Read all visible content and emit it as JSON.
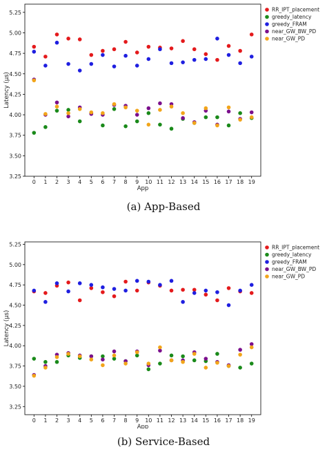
{
  "chart_data": [
    {
      "type": "scatter",
      "caption": "(a) App-Based",
      "xlabel": "App",
      "ylabel": "Latency (μs)",
      "xlim": [
        -0.8,
        19.8
      ],
      "ylim": [
        3.25,
        5.35
      ],
      "x_ticks": [
        0,
        1,
        2,
        3,
        4,
        5,
        6,
        7,
        8,
        9,
        10,
        11,
        12,
        13,
        14,
        15,
        16,
        17,
        18,
        19
      ],
      "y_ticks": [
        3.25,
        3.5,
        3.75,
        4.0,
        4.25,
        4.5,
        4.75,
        5.0,
        5.25
      ],
      "y_tick_labels": [
        "3.25",
        "3.50",
        "3.75",
        "4.00",
        "4.25",
        "4.50",
        "4.75",
        "5.00",
        "5.25"
      ],
      "legend_position": "top-right",
      "grid": false,
      "x": [
        0,
        1,
        2,
        3,
        4,
        5,
        6,
        7,
        8,
        9,
        10,
        11,
        12,
        13,
        14,
        15,
        16,
        17,
        18,
        19
      ],
      "series": [
        {
          "name": "RR_IPT_placement",
          "color": "#e41a1c",
          "values": [
            4.83,
            4.71,
            4.98,
            4.93,
            4.92,
            4.73,
            4.78,
            4.8,
            4.89,
            4.76,
            4.83,
            4.82,
            4.81,
            4.9,
            4.8,
            4.74,
            4.67,
            4.84,
            4.78,
            4.98
          ]
        },
        {
          "name": "greedy_latency",
          "color": "#1a8a1a",
          "values": [
            3.78,
            3.85,
            4.05,
            4.06,
            3.92,
            4.02,
            3.87,
            4.07,
            3.86,
            3.92,
            4.02,
            3.88,
            3.83,
            3.95,
            3.9,
            3.97,
            3.97,
            3.87,
            4.02,
            3.96
          ]
        },
        {
          "name": "greedy_FRAM",
          "color": "#1f1fe0",
          "values": [
            4.77,
            4.6,
            4.88,
            4.62,
            4.54,
            4.62,
            4.73,
            4.59,
            4.72,
            4.6,
            4.68,
            4.8,
            4.63,
            4.64,
            4.67,
            4.68,
            4.93,
            4.73,
            4.63,
            4.71
          ]
        },
        {
          "name": "near_GW_BW_PD",
          "color": "#7b0f8c",
          "values": [
            4.43,
            4.0,
            4.15,
            3.98,
            4.09,
            4.01,
            4.0,
            4.12,
            4.11,
            4.0,
            4.08,
            4.14,
            4.13,
            3.96,
            3.91,
            4.05,
            3.88,
            4.04,
            3.95,
            4.03
          ]
        },
        {
          "name": "near_GW_PD",
          "color": "#f2a51a",
          "values": [
            4.42,
            4.01,
            4.1,
            4.02,
            4.07,
            4.03,
            4.02,
            4.13,
            4.09,
            4.05,
            3.88,
            4.06,
            4.1,
            4.02,
            3.9,
            4.08,
            3.87,
            4.09,
            3.94,
            3.97
          ]
        }
      ]
    },
    {
      "type": "scatter",
      "caption": "(b) Service-Based",
      "xlabel": "App",
      "ylabel": "Latency (μs)",
      "xlim": [
        -0.8,
        19.8
      ],
      "ylim": [
        3.15,
        5.28
      ],
      "x_ticks": [
        0,
        1,
        2,
        3,
        4,
        5,
        6,
        7,
        8,
        9,
        10,
        11,
        12,
        13,
        14,
        15,
        16,
        17,
        18,
        19
      ],
      "y_ticks": [
        3.25,
        3.5,
        3.75,
        4.0,
        4.25,
        4.5,
        4.75,
        5.0,
        5.25
      ],
      "y_tick_labels": [
        "3.25",
        "3.50",
        "3.75",
        "4.00",
        "4.25",
        "4.50",
        "4.75",
        "5.00",
        "5.25"
      ],
      "legend_position": "top-right",
      "grid": false,
      "x": [
        0,
        1,
        2,
        3,
        4,
        5,
        6,
        7,
        8,
        9,
        10,
        11,
        12,
        13,
        14,
        15,
        16,
        17,
        18,
        19
      ],
      "series": [
        {
          "name": "RR_IPT_placement",
          "color": "#e41a1c",
          "values": [
            4.67,
            4.65,
            4.74,
            4.78,
            4.56,
            4.71,
            4.66,
            4.61,
            4.79,
            4.68,
            4.78,
            4.74,
            4.68,
            4.69,
            4.69,
            4.63,
            4.56,
            4.71,
            4.67,
            4.65
          ]
        },
        {
          "name": "greedy_latency",
          "color": "#1a8a1a",
          "values": [
            3.84,
            3.8,
            3.8,
            3.88,
            3.85,
            3.87,
            3.87,
            3.84,
            3.81,
            3.88,
            3.71,
            3.78,
            3.88,
            3.87,
            3.82,
            3.81,
            3.9,
            3.75,
            3.73,
            3.78
          ]
        },
        {
          "name": "greedy_FRAM",
          "color": "#1f1fe0",
          "values": [
            4.68,
            4.54,
            4.77,
            4.67,
            4.77,
            4.75,
            4.72,
            4.7,
            4.68,
            4.8,
            4.79,
            4.75,
            4.8,
            4.54,
            4.65,
            4.68,
            4.66,
            4.5,
            4.68,
            4.75
          ]
        },
        {
          "name": "near_GW_BW_PD",
          "color": "#7b0f8c",
          "values": [
            3.64,
            3.75,
            3.89,
            3.91,
            3.88,
            3.87,
            3.83,
            3.93,
            3.81,
            3.93,
            3.76,
            3.94,
            3.82,
            3.82,
            3.92,
            3.84,
            3.8,
            3.76,
            3.95,
            4.02
          ]
        },
        {
          "name": "near_GW_PD",
          "color": "#f2a51a",
          "values": [
            3.63,
            3.73,
            3.86,
            3.9,
            3.87,
            3.83,
            3.76,
            3.88,
            3.78,
            3.92,
            3.78,
            3.98,
            3.82,
            3.8,
            3.9,
            3.73,
            3.79,
            3.75,
            3.89,
            3.98
          ]
        }
      ]
    }
  ]
}
